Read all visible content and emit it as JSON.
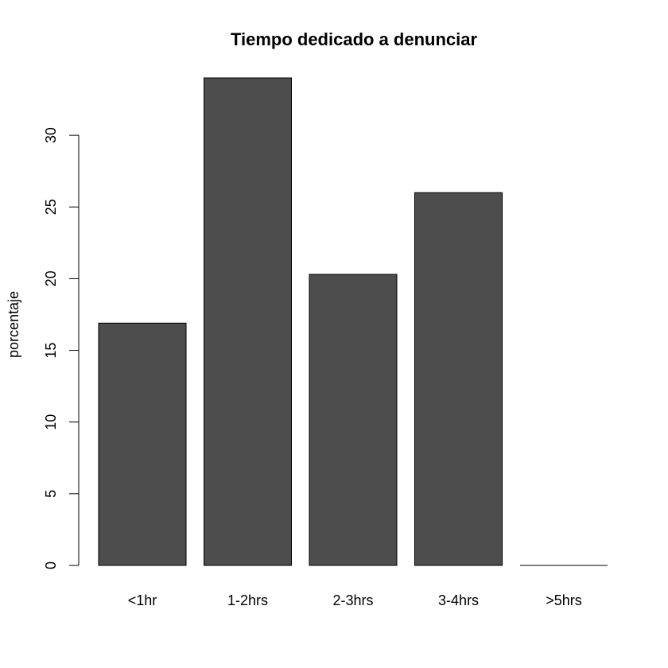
{
  "chart_data": {
    "type": "bar",
    "title": "Tiempo dedicado a denunciar",
    "xlabel": "",
    "ylabel": "porcentaje",
    "categories": [
      "<1hr",
      "1-2hrs",
      "2-3hrs",
      "3-4hrs",
      ">5hrs"
    ],
    "values": [
      16.9,
      34.0,
      20.3,
      26.0,
      0
    ],
    "ylim": [
      0,
      34
    ],
    "yticks": [
      0,
      5,
      10,
      15,
      20,
      25,
      30
    ],
    "bar_color": "#4d4d4d",
    "grid": false,
    "legend": "none"
  }
}
